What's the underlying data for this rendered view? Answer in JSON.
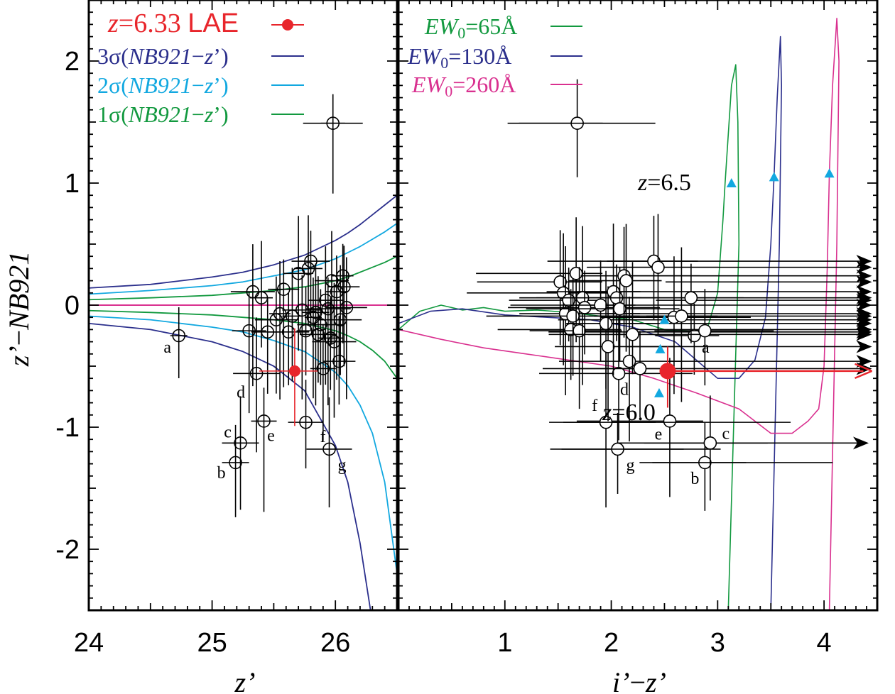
{
  "chart_data": [
    {
      "type": "scatter",
      "panel": "left",
      "xlabel": "z'",
      "ylabel": "z'−NB921",
      "xlim": [
        24,
        26.5
      ],
      "ylim": [
        -2.5,
        2.5
      ],
      "xticks": [
        24,
        25,
        26
      ],
      "yticks": [
        -2,
        -1,
        0,
        1,
        2
      ],
      "ytick_labels": [
        "-2",
        "-1",
        "0",
        "1",
        "2"
      ],
      "legend": [
        {
          "label": "z=6.33 LAE",
          "color": "#e8252b",
          "marker": "filled-circle"
        },
        {
          "label": "3σ(NB921−z')",
          "color": "#2b2f8c"
        },
        {
          "label": "2σ(NB921−z')",
          "color": "#12a8e0"
        },
        {
          "label": "1σ(NB921−z')",
          "color": "#12993f"
        }
      ],
      "curves": {
        "x": [
          24.0,
          24.5,
          25.0,
          25.25,
          25.5,
          25.75,
          26.0,
          26.1,
          26.2,
          26.3,
          26.4,
          26.5
        ],
        "sigma3_upper": [
          0.14,
          0.17,
          0.23,
          0.27,
          0.33,
          0.41,
          0.53,
          0.59,
          0.66,
          0.74,
          0.82,
          0.9
        ],
        "sigma2_upper": [
          0.09,
          0.12,
          0.16,
          0.19,
          0.24,
          0.29,
          0.38,
          0.43,
          0.48,
          0.54,
          0.6,
          0.67
        ],
        "sigma1_upper": [
          0.045,
          0.06,
          0.08,
          0.1,
          0.12,
          0.15,
          0.2,
          0.23,
          0.27,
          0.31,
          0.35,
          0.4
        ],
        "sigma1_lower": [
          -0.045,
          -0.06,
          -0.08,
          -0.1,
          -0.12,
          -0.15,
          -0.21,
          -0.25,
          -0.3,
          -0.37,
          -0.46,
          -0.6
        ],
        "sigma2_lower": [
          -0.09,
          -0.12,
          -0.18,
          -0.22,
          -0.29,
          -0.38,
          -0.55,
          -0.66,
          -0.82,
          -1.05,
          -1.45,
          -2.2
        ],
        "sigma3_lower": [
          -0.15,
          -0.2,
          -0.3,
          -0.38,
          -0.5,
          -0.7,
          -1.15,
          -1.45,
          -1.95,
          -2.6
        ],
        "zero_line_color": "#d9308f"
      },
      "lae": {
        "x": 25.67,
        "y": -0.54,
        "xerr": 0.3,
        "yerr": [
          0.35,
          0.45
        ]
      },
      "points": [
        {
          "x": 24.73,
          "y": -0.25,
          "label": "a"
        },
        {
          "x": 25.19,
          "y": -1.29,
          "label": "b"
        },
        {
          "x": 25.23,
          "y": -1.13,
          "label": "c"
        },
        {
          "x": 25.36,
          "y": -0.56,
          "label": "d"
        },
        {
          "x": 25.42,
          "y": -0.95,
          "label": "e"
        },
        {
          "x": 25.76,
          "y": -0.96,
          "label": "f"
        },
        {
          "x": 25.95,
          "y": -1.18,
          "label": "g"
        },
        {
          "x": 25.98,
          "y": 1.49,
          "label": ""
        },
        {
          "x": 25.3,
          "y": -0.21,
          "label": ""
        },
        {
          "x": 25.33,
          "y": 0.11,
          "label": ""
        },
        {
          "x": 25.4,
          "y": 0.06,
          "label": ""
        },
        {
          "x": 25.45,
          "y": -0.22,
          "label": ""
        },
        {
          "x": 25.52,
          "y": -0.12,
          "label": ""
        },
        {
          "x": 25.55,
          "y": -0.07,
          "label": ""
        },
        {
          "x": 25.58,
          "y": 0.13,
          "label": ""
        },
        {
          "x": 25.62,
          "y": -0.22,
          "label": ""
        },
        {
          "x": 25.65,
          "y": -0.09,
          "label": ""
        },
        {
          "x": 25.7,
          "y": 0.26,
          "label": ""
        },
        {
          "x": 25.73,
          "y": -0.04,
          "label": ""
        },
        {
          "x": 25.76,
          "y": -0.21,
          "label": ""
        },
        {
          "x": 25.78,
          "y": 0.3,
          "label": ""
        },
        {
          "x": 25.8,
          "y": 0.36,
          "label": ""
        },
        {
          "x": 25.82,
          "y": -0.1,
          "label": ""
        },
        {
          "x": 25.84,
          "y": -0.06,
          "label": ""
        },
        {
          "x": 25.86,
          "y": -0.24,
          "label": ""
        },
        {
          "x": 25.88,
          "y": -0.16,
          "label": ""
        },
        {
          "x": 25.9,
          "y": -0.52,
          "label": ""
        },
        {
          "x": 25.92,
          "y": 0.04,
          "label": ""
        },
        {
          "x": 25.94,
          "y": -0.03,
          "label": ""
        },
        {
          "x": 25.96,
          "y": -0.27,
          "label": ""
        },
        {
          "x": 25.97,
          "y": 0.2,
          "label": ""
        },
        {
          "x": 25.99,
          "y": -0.3,
          "label": ""
        },
        {
          "x": 26.01,
          "y": 0.11,
          "label": ""
        },
        {
          "x": 26.03,
          "y": -0.46,
          "label": ""
        },
        {
          "x": 26.04,
          "y": -0.12,
          "label": ""
        },
        {
          "x": 26.06,
          "y": 0.24,
          "label": ""
        },
        {
          "x": 26.07,
          "y": 0.15,
          "label": ""
        },
        {
          "x": 26.09,
          "y": -0.02,
          "label": ""
        }
      ]
    },
    {
      "type": "scatter",
      "panel": "right",
      "xlabel": "i'−z'",
      "xlim": [
        0.0,
        4.5
      ],
      "ylim": [
        -2.5,
        2.5
      ],
      "xticks": [
        1,
        2,
        3,
        4
      ],
      "legend": [
        {
          "label": "EW0=65Å",
          "color": "#12993f"
        },
        {
          "label": "EW0=130Å",
          "color": "#2b2f8c"
        },
        {
          "label": "EW0=260Å",
          "color": "#d9308f"
        }
      ],
      "annotations": [
        "z=6.5",
        "z=6.0"
      ],
      "tracks": {
        "ew65": {
          "x": [
            0.0,
            0.2,
            0.4,
            0.6,
            0.8,
            1.0,
            1.3,
            1.6,
            1.9,
            2.2,
            2.5,
            2.7,
            2.8,
            2.9,
            3.0,
            3.05,
            3.07,
            3.1,
            3.13,
            3.17,
            3.19,
            3.2,
            3.1
          ],
          "y": [
            -0.2,
            -0.05,
            0.0,
            -0.04,
            -0.02,
            -0.05,
            -0.04,
            -0.06,
            -0.09,
            -0.12,
            -0.2,
            -0.21,
            -0.22,
            -0.2,
            0.1,
            0.7,
            1.0,
            1.4,
            1.8,
            1.97,
            1.5,
            0.5,
            -2.5
          ]
        },
        "ew130": {
          "x": [
            0.0,
            0.3,
            0.6,
            1.0,
            1.4,
            1.8,
            2.2,
            2.6,
            3.0,
            3.2,
            3.35,
            3.45,
            3.5,
            3.53,
            3.56,
            3.59,
            3.6,
            3.58,
            3.5
          ],
          "y": [
            -0.15,
            -0.05,
            -0.03,
            -0.08,
            -0.1,
            -0.12,
            -0.18,
            -0.3,
            -0.6,
            -0.6,
            -0.45,
            -0.1,
            0.5,
            1.05,
            1.7,
            2.2,
            1.8,
            0.5,
            -2.5
          ]
        },
        "ew260": {
          "x": [
            0.0,
            0.4,
            0.8,
            1.2,
            1.6,
            2.0,
            2.4,
            2.8,
            3.2,
            3.5,
            3.7,
            3.85,
            3.95,
            4.0,
            4.03,
            4.05,
            4.08,
            4.12,
            4.14,
            4.12,
            4.05
          ],
          "y": [
            -0.2,
            -0.28,
            -0.35,
            -0.4,
            -0.45,
            -0.5,
            -0.6,
            -0.72,
            -0.85,
            -1.05,
            -1.05,
            -0.95,
            -0.85,
            -0.5,
            0.3,
            1.08,
            1.8,
            2.35,
            2.0,
            0.5,
            -2.5
          ]
        }
      },
      "track_color_markers": "#12a8e0",
      "redshift_markers": [
        {
          "x": 2.45,
          "y": -0.72
        },
        {
          "x": 2.46,
          "y": -0.36
        },
        {
          "x": 2.5,
          "y": -0.12
        },
        {
          "x": 3.13,
          "y": 1.0
        },
        {
          "x": 3.53,
          "y": 1.05
        },
        {
          "x": 4.05,
          "y": 1.08
        }
      ],
      "lae": {
        "x": 2.53,
        "y": -0.54,
        "yerr": [
          0.2,
          0.3
        ],
        "lower_limit": true,
        "arrow_to": 4.45
      },
      "points": [
        {
          "x": 2.78,
          "y": -0.25,
          "label": "a"
        },
        {
          "x": 2.88,
          "y": -1.29,
          "label": "b"
        },
        {
          "x": 2.93,
          "y": -1.13,
          "label": "c"
        },
        {
          "x": 2.07,
          "y": -0.56,
          "label": "d"
        },
        {
          "x": 2.55,
          "y": -0.95,
          "label": "e"
        },
        {
          "x": 1.95,
          "y": -0.96,
          "label": "f"
        },
        {
          "x": 2.06,
          "y": -1.18,
          "label": "g"
        },
        {
          "x": 1.68,
          "y": 1.49,
          "label": ""
        },
        {
          "x": 1.52,
          "y": 0.19,
          "label": ""
        },
        {
          "x": 1.55,
          "y": 0.1,
          "label": ""
        },
        {
          "x": 1.57,
          "y": -0.07,
          "label": ""
        },
        {
          "x": 1.6,
          "y": 0.04,
          "label": ""
        },
        {
          "x": 1.62,
          "y": -0.2,
          "label": ""
        },
        {
          "x": 1.64,
          "y": -0.09,
          "label": ""
        },
        {
          "x": 1.67,
          "y": 0.26,
          "label": ""
        },
        {
          "x": 1.7,
          "y": -0.21,
          "label": ""
        },
        {
          "x": 1.73,
          "y": 0.06,
          "label": ""
        },
        {
          "x": 1.75,
          "y": -0.02,
          "label": ""
        },
        {
          "x": 1.9,
          "y": 0.0,
          "label": ""
        },
        {
          "x": 1.95,
          "y": -0.15,
          "label": ""
        },
        {
          "x": 1.97,
          "y": -0.34,
          "label": ""
        },
        {
          "x": 2.02,
          "y": 0.11,
          "label": ""
        },
        {
          "x": 2.05,
          "y": 0.06,
          "label": ""
        },
        {
          "x": 2.08,
          "y": -0.03,
          "label": ""
        },
        {
          "x": 2.12,
          "y": 0.24,
          "label": ""
        },
        {
          "x": 2.14,
          "y": 0.2,
          "label": ""
        },
        {
          "x": 2.17,
          "y": -0.46,
          "label": ""
        },
        {
          "x": 2.2,
          "y": -0.24,
          "label": ""
        },
        {
          "x": 2.27,
          "y": -0.52,
          "label": ""
        },
        {
          "x": 2.4,
          "y": 0.36,
          "label": ""
        },
        {
          "x": 2.44,
          "y": 0.31,
          "label": ""
        },
        {
          "x": 2.59,
          "y": -0.1,
          "label": ""
        },
        {
          "x": 2.66,
          "y": -0.09,
          "label": ""
        },
        {
          "x": 2.75,
          "y": 0.06,
          "label": ""
        },
        {
          "x": 2.88,
          "y": -0.21,
          "label": ""
        }
      ],
      "lower_limit_rows": [
        0.36,
        0.31,
        0.24,
        0.19,
        0.11,
        0.06,
        0.04,
        0.0,
        -0.07,
        -0.09,
        -0.12,
        -0.15,
        -0.2,
        -0.22,
        -0.24,
        -0.34,
        -0.46,
        -0.52,
        -1.13
      ]
    }
  ]
}
